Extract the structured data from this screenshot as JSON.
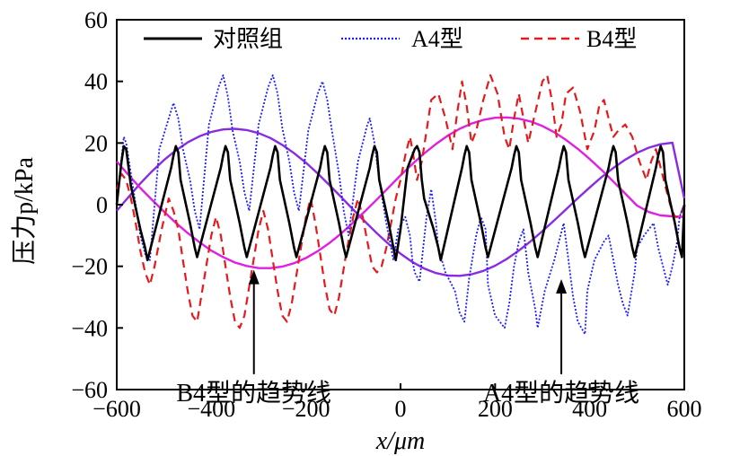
{
  "chart_data": {
    "type": "line",
    "title": "",
    "xlabel": "x/μm",
    "ylabel": "压力p/kPa",
    "xlim": [
      -600,
      600
    ],
    "ylim": [
      -60,
      60
    ],
    "x_ticks": [
      -600,
      -400,
      -200,
      0,
      200,
      400,
      600
    ],
    "y_ticks": [
      -60,
      -40,
      -20,
      0,
      20,
      40,
      60
    ],
    "grid": false,
    "legend_position": "top",
    "legend": [
      "对照组",
      "A4型",
      "B4型"
    ],
    "colors": {
      "control": "#000000",
      "a4": "#1c1cff",
      "b4": "#e41a1c",
      "a4_trend": "#8a2be2",
      "b4_trend": "#e020e0"
    },
    "series": [
      {
        "name": "对照组",
        "style": "solid",
        "x": [
          -600,
          -590,
          -585,
          -580,
          -575,
          -570,
          -550,
          -540,
          -535,
          -485,
          -480,
          -475,
          -470,
          -465,
          -445,
          -435,
          -430,
          -380,
          -375,
          -370,
          -365,
          -360,
          -340,
          -330,
          -325,
          -275,
          -270,
          -265,
          -260,
          -255,
          -235,
          -225,
          -220,
          -170,
          -165,
          -160,
          -155,
          -150,
          -130,
          -120,
          -115,
          -65,
          -60,
          -55,
          -50,
          -45,
          -25,
          -15,
          -10,
          0,
          15,
          30,
          35,
          40,
          45,
          50,
          70,
          80,
          85,
          130,
          135,
          140,
          145,
          150,
          170,
          180,
          185,
          235,
          240,
          245,
          250,
          255,
          275,
          285,
          290,
          335,
          340,
          345,
          350,
          355,
          375,
          385,
          390,
          440,
          445,
          450,
          455,
          460,
          480,
          490,
          495,
          540,
          545,
          550,
          555,
          560,
          580,
          590,
          595,
          600
        ],
        "y": [
          0,
          14,
          19,
          18,
          12,
          6,
          -8,
          -14,
          -18,
          12,
          16,
          19,
          17,
          8,
          -6,
          -14,
          -17,
          12,
          16,
          19,
          17,
          8,
          -6,
          -14,
          -17,
          12,
          16,
          19,
          17,
          8,
          -6,
          -14,
          -17,
          12,
          16,
          19,
          17,
          8,
          -6,
          -14,
          -17,
          12,
          16,
          19,
          17,
          8,
          -6,
          -14,
          -18,
          -8,
          12,
          18,
          19,
          17,
          8,
          2,
          -8,
          -14,
          -18,
          12,
          16,
          19,
          17,
          8,
          -6,
          -14,
          -17,
          12,
          16,
          19,
          17,
          8,
          -6,
          -14,
          -17,
          12,
          16,
          19,
          17,
          8,
          -6,
          -14,
          -17,
          12,
          16,
          19,
          17,
          8,
          -6,
          -14,
          -17,
          12,
          16,
          19,
          17,
          8,
          -6,
          -14,
          -17,
          0
        ]
      },
      {
        "name": "A4型",
        "style": "dotted",
        "x": [
          -600,
          -590,
          -585,
          -580,
          -570,
          -560,
          -550,
          -540,
          -530,
          -510,
          -490,
          -480,
          -470,
          -460,
          -445,
          -435,
          -425,
          -405,
          -385,
          -375,
          -365,
          -355,
          -340,
          -330,
          -320,
          -300,
          -280,
          -270,
          -260,
          -250,
          -235,
          -225,
          -215,
          -195,
          -175,
          -165,
          -155,
          -145,
          -130,
          -120,
          -110,
          -90,
          -70,
          -65,
          -55,
          -45,
          -30,
          -20,
          -15,
          -5,
          10,
          20,
          25,
          30,
          40,
          55,
          65,
          75,
          80,
          95,
          115,
          125,
          135,
          145,
          160,
          170,
          180,
          185,
          200,
          220,
          230,
          240,
          250,
          260,
          270,
          285,
          290,
          305,
          325,
          335,
          345,
          355,
          365,
          375,
          390,
          395,
          410,
          430,
          440,
          450,
          460,
          470,
          480,
          495,
          500,
          515,
          535,
          545,
          555,
          565,
          575,
          585,
          590,
          600
        ],
        "y": [
          0,
          15,
          22,
          20,
          10,
          0,
          -10,
          -16,
          -18,
          18,
          28,
          33,
          28,
          18,
          8,
          -2,
          -8,
          26,
          38,
          42,
          35,
          24,
          14,
          4,
          -2,
          26,
          38,
          42,
          36,
          25,
          14,
          4,
          -2,
          24,
          36,
          40,
          34,
          24,
          10,
          -2,
          -10,
          14,
          26,
          28,
          20,
          8,
          -6,
          -14,
          -18,
          -8,
          -4,
          -10,
          -18,
          -22,
          -25,
          -4,
          5,
          -6,
          -14,
          -22,
          -28,
          -35,
          -38,
          -24,
          -10,
          -4,
          -8,
          -26,
          -36,
          -40,
          -32,
          -20,
          -12,
          -8,
          -22,
          -34,
          -40,
          -28,
          -18,
          -12,
          -6,
          -18,
          -30,
          -38,
          -42,
          -28,
          -18,
          -12,
          -10,
          -18,
          -26,
          -32,
          -36,
          -22,
          -14,
          -10,
          -6,
          -14,
          -20,
          -26,
          -20,
          -12,
          -4,
          0
        ]
      },
      {
        "name": "B4型",
        "style": "dashed",
        "x": [
          -600,
          -590,
          -580,
          -570,
          -560,
          -550,
          -540,
          -530,
          -520,
          -505,
          -490,
          -480,
          -470,
          -460,
          -450,
          -440,
          -430,
          -415,
          -400,
          -390,
          -380,
          -370,
          -360,
          -350,
          -340,
          -330,
          -315,
          -300,
          -290,
          -280,
          -270,
          -260,
          -250,
          -240,
          -230,
          -215,
          -200,
          -190,
          -180,
          -170,
          -160,
          -150,
          -140,
          -130,
          -115,
          -100,
          -90,
          -80,
          -70,
          -60,
          -50,
          -40,
          -30,
          -20,
          -10,
          0,
          10,
          20,
          25,
          35,
          45,
          55,
          65,
          80,
          95,
          110,
          120,
          130,
          140,
          150,
          160,
          175,
          190,
          205,
          220,
          230,
          240,
          250,
          260,
          270,
          285,
          300,
          310,
          320,
          330,
          340,
          350,
          365,
          380,
          395,
          410,
          420,
          430,
          440,
          450,
          460,
          475,
          490,
          505,
          520,
          530,
          540,
          550,
          560,
          570,
          580,
          590,
          600
        ],
        "y": [
          5,
          10,
          8,
          2,
          -6,
          -15,
          -22,
          -26,
          -20,
          -8,
          2,
          -2,
          -8,
          -18,
          -28,
          -36,
          -38,
          -24,
          -10,
          -4,
          -10,
          -20,
          -30,
          -38,
          -40,
          -36,
          -22,
          -8,
          -2,
          -8,
          -18,
          -28,
          -36,
          -38,
          -32,
          -18,
          -4,
          2,
          -6,
          -16,
          -26,
          -34,
          -36,
          -30,
          -16,
          -4,
          2,
          -4,
          -12,
          -20,
          -22,
          -20,
          -14,
          -6,
          2,
          8,
          16,
          22,
          18,
          8,
          14,
          24,
          34,
          36,
          28,
          18,
          30,
          40,
          32,
          20,
          24,
          34,
          42,
          36,
          22,
          18,
          28,
          36,
          28,
          20,
          30,
          40,
          42,
          34,
          22,
          26,
          36,
          38,
          30,
          18,
          24,
          32,
          34,
          28,
          22,
          24,
          26,
          22,
          14,
          8,
          14,
          18,
          12,
          6,
          0,
          -4,
          -4,
          0
        ]
      },
      {
        "name": "A4型的趋势线",
        "style": "solid",
        "x": [
          -600,
          -575,
          -550,
          -525,
          -500,
          -475,
          -450,
          -425,
          -400,
          -375,
          -350,
          -325,
          -300,
          -275,
          -250,
          -225,
          -200,
          -175,
          -150,
          -125,
          -100,
          -75,
          -50,
          -25,
          0,
          25,
          50,
          75,
          100,
          125,
          150,
          175,
          200,
          225,
          250,
          275,
          300,
          325,
          350,
          375,
          400,
          425,
          450,
          475,
          500,
          525,
          550,
          575,
          600
        ],
        "y": [
          -2,
          2.5,
          6.9,
          10.9,
          14.5,
          17.6,
          20.2,
          22.2,
          23.6,
          24.4,
          24.6,
          24.2,
          23.2,
          21.6,
          19.4,
          16.7,
          13.6,
          10.1,
          6.3,
          2.4,
          -1.6,
          -5.5,
          -9.3,
          -12.8,
          -15.9,
          -18.6,
          -20.7,
          -22.2,
          -23.0,
          -23.1,
          -22.6,
          -21.5,
          -19.8,
          -17.6,
          -14.9,
          -11.9,
          -8.6,
          -5.1,
          -1.5,
          2.1,
          5.6,
          8.9,
          11.9,
          14.6,
          16.8,
          18.5,
          19.6,
          20.1,
          2
        ]
      },
      {
        "name": "B4型的趋势线",
        "style": "solid",
        "x": [
          -600,
          -575,
          -550,
          -525,
          -500,
          -475,
          -450,
          -425,
          -400,
          -375,
          -350,
          -325,
          -300,
          -275,
          -250,
          -225,
          -200,
          -175,
          -150,
          -125,
          -100,
          -75,
          -50,
          -25,
          0,
          25,
          50,
          75,
          100,
          125,
          150,
          175,
          200,
          225,
          250,
          275,
          300,
          325,
          350,
          375,
          400,
          425,
          450,
          475,
          500,
          525,
          550,
          575,
          600
        ],
        "y": [
          14,
          9.6,
          5.4,
          1.5,
          -2.3,
          -5.9,
          -9.2,
          -12.2,
          -14.9,
          -17.0,
          -18.8,
          -19.9,
          -20.6,
          -20.6,
          -20.1,
          -19.0,
          -17.3,
          -15.1,
          -12.4,
          -9.3,
          -5.8,
          -2.1,
          1.7,
          5.6,
          9.5,
          13.2,
          16.6,
          19.7,
          22.4,
          24.6,
          26.3,
          27.5,
          28.2,
          28.3,
          27.9,
          27.0,
          25.5,
          23.5,
          21.0,
          18.1,
          14.8,
          11.3,
          7.5,
          3.6,
          -0.3,
          -2.4,
          -3.5,
          -3.8,
          -4
        ]
      }
    ],
    "annotations": [
      {
        "text": "B4型的趋势线",
        "arrow_to": [
          -310,
          -20
        ],
        "arrow_from": [
          -310,
          -55
        ]
      },
      {
        "text": "A4型的趋势线",
        "arrow_to": [
          340,
          -23
        ],
        "arrow_from": [
          340,
          -55
        ]
      }
    ]
  }
}
